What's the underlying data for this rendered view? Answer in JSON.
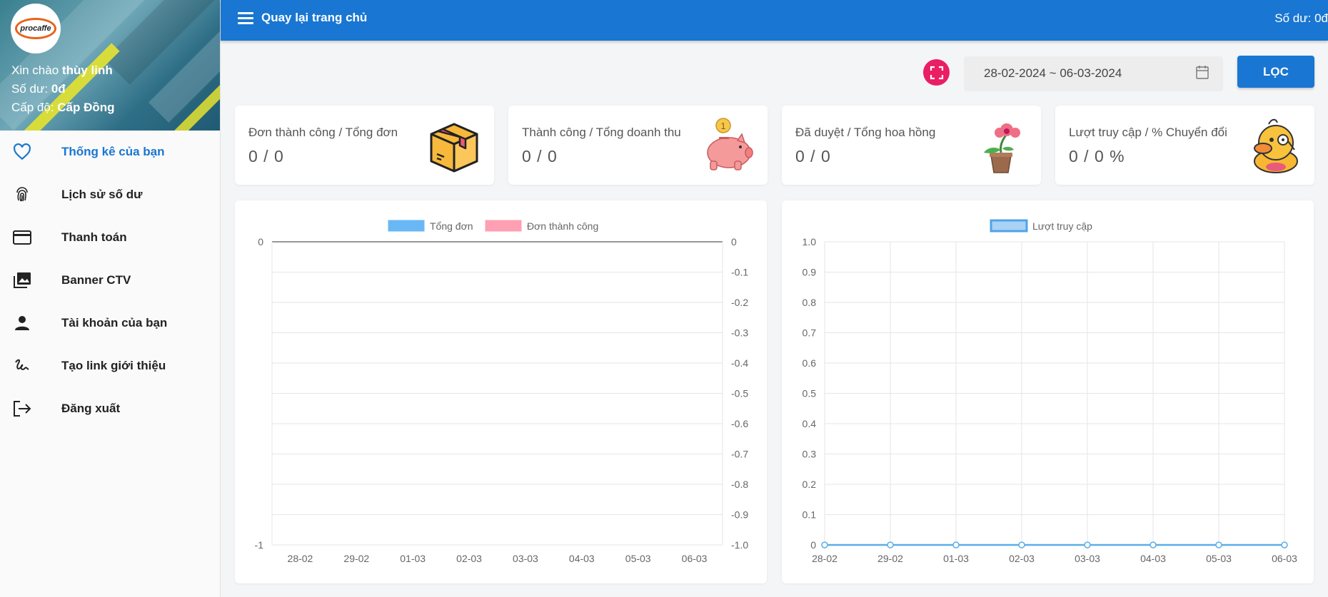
{
  "sidebar": {
    "logo_text": "procaffe",
    "greeting_prefix": "Xin chào",
    "user_name": "thùy linh",
    "balance_label": "Số dư:",
    "balance_value": "0đ",
    "level_label": "Cấp độ:",
    "level_value": "Cấp Đồng",
    "items": [
      {
        "label": "Thống kê của bạn",
        "icon": "heart-icon"
      },
      {
        "label": "Lịch sử số dư",
        "icon": "fingerprint-icon"
      },
      {
        "label": "Thanh toán",
        "icon": "credit-card-icon"
      },
      {
        "label": "Banner CTV",
        "icon": "image-icon"
      },
      {
        "label": "Tài khoản của bạn",
        "icon": "person-icon"
      },
      {
        "label": "Tạo link giới thiệu",
        "icon": "gesture-icon"
      },
      {
        "label": "Đăng xuất",
        "icon": "logout-icon"
      }
    ]
  },
  "topbar": {
    "back_label": "Quay lại trang chủ",
    "balance": "Số dư: 0đ"
  },
  "filter": {
    "date_range": "28-02-2024 ~ 06-03-2024",
    "button_label": "LỌC"
  },
  "cards": [
    {
      "title": "Đơn thành công / Tổng đơn",
      "value": "0 / 0",
      "icon": "box-icon"
    },
    {
      "title": "Thành công / Tổng doanh thu",
      "value": "0 / 0",
      "icon": "piggy-bank-icon"
    },
    {
      "title": "Đã duyệt / Tổng hoa hồng",
      "value": "0 / 0",
      "icon": "flower-pot-icon"
    },
    {
      "title": "Lượt truy cập / % Chuyển đổi",
      "value": "0 / 0 %",
      "icon": "duck-icon"
    }
  ],
  "colors": {
    "primary": "#1976d2",
    "accent": "#e91e63",
    "series_blue": "#6ab7f5",
    "series_pink": "#ff9fb3"
  },
  "chart_data": [
    {
      "type": "bar",
      "categories": [
        "28-02",
        "29-02",
        "01-03",
        "02-03",
        "03-03",
        "04-03",
        "05-03",
        "06-03"
      ],
      "series": [
        {
          "name": "Tổng đơn",
          "values": [
            0,
            0,
            0,
            0,
            0,
            0,
            0,
            0
          ]
        },
        {
          "name": "Đơn thành công",
          "values": [
            0,
            0,
            0,
            0,
            0,
            0,
            0,
            0
          ]
        }
      ],
      "y_left_ticks": [
        "0",
        "-1"
      ],
      "y_right_ticks": [
        "0",
        "-0.1",
        "-0.2",
        "-0.3",
        "-0.4",
        "-0.5",
        "-0.6",
        "-0.7",
        "-0.8",
        "-0.9",
        "-1.0"
      ],
      "ylim": [
        -1,
        0
      ],
      "grid": true,
      "legend": "top-center"
    },
    {
      "type": "line",
      "categories": [
        "28-02",
        "29-02",
        "01-03",
        "02-03",
        "03-03",
        "04-03",
        "05-03",
        "06-03"
      ],
      "series": [
        {
          "name": "Lượt truy cập",
          "values": [
            0,
            0,
            0,
            0,
            0,
            0,
            0,
            0
          ]
        }
      ],
      "y_ticks": [
        "0",
        "0.1",
        "0.2",
        "0.3",
        "0.4",
        "0.5",
        "0.6",
        "0.7",
        "0.8",
        "0.9",
        "1.0"
      ],
      "ylim": [
        0,
        1
      ],
      "grid": true,
      "legend": "top-center"
    }
  ]
}
